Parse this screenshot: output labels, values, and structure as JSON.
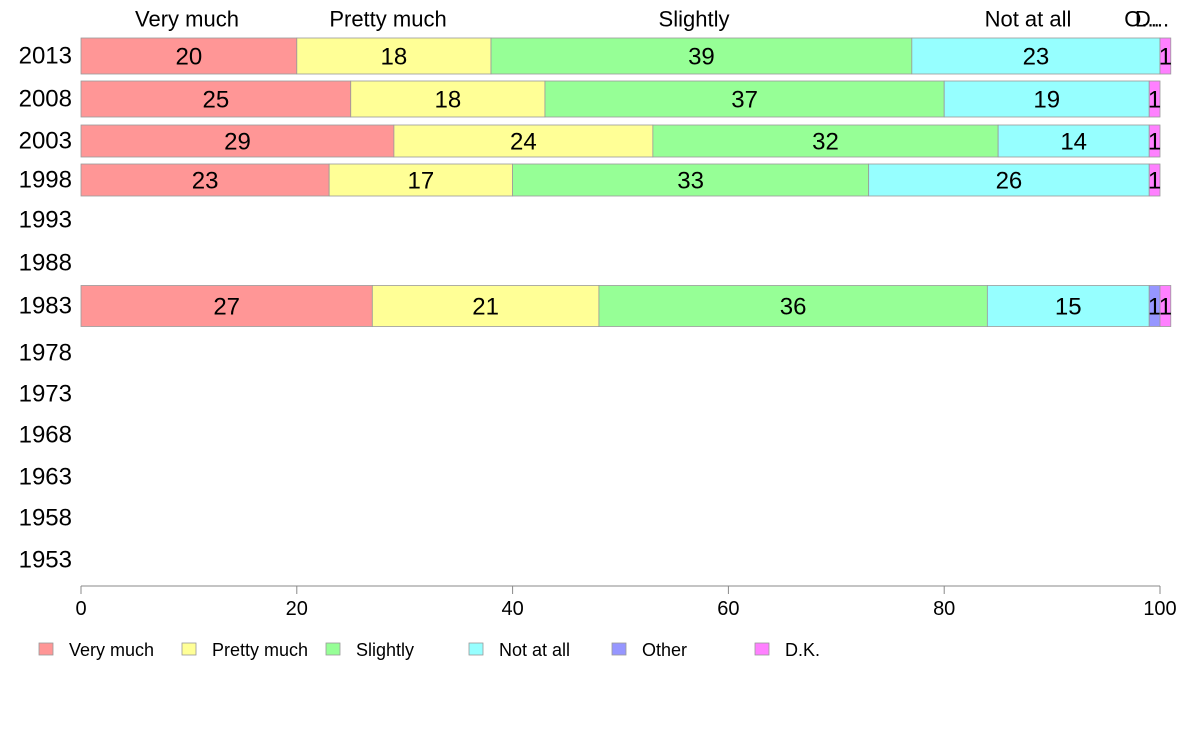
{
  "chart_data": {
    "type": "bar",
    "orientation": "horizontal",
    "stacked": true,
    "categories": [
      "2013",
      "2008",
      "2003",
      "1998",
      "1993",
      "1988",
      "1983",
      "1978",
      "1973",
      "1968",
      "1963",
      "1958",
      "1953"
    ],
    "series": [
      {
        "name": "Very much",
        "color": "#ff9696",
        "values": [
          20,
          25,
          29,
          23,
          null,
          null,
          27,
          null,
          null,
          null,
          null,
          null,
          null
        ]
      },
      {
        "name": "Pretty much",
        "color": "#ffff96",
        "values": [
          18,
          18,
          24,
          17,
          null,
          null,
          21,
          null,
          null,
          null,
          null,
          null,
          null
        ]
      },
      {
        "name": "Slightly",
        "color": "#96ff96",
        "values": [
          39,
          37,
          32,
          33,
          null,
          null,
          36,
          null,
          null,
          null,
          null,
          null,
          null
        ]
      },
      {
        "name": "Not at all",
        "color": "#96ffff",
        "values": [
          23,
          19,
          14,
          26,
          null,
          null,
          15,
          null,
          null,
          null,
          null,
          null,
          null
        ]
      },
      {
        "name": "Other",
        "color": "#9696ff",
        "values": [
          0,
          0,
          0,
          0,
          null,
          null,
          1,
          null,
          null,
          null,
          null,
          null,
          null
        ]
      },
      {
        "name": "D.K.",
        "color": "#ff80ff",
        "values": [
          1,
          1,
          1,
          1,
          null,
          null,
          1,
          null,
          null,
          null,
          null,
          null,
          null
        ]
      }
    ],
    "top_labels": [
      "Very much",
      "Pretty much",
      "Slightly",
      "Not at all",
      "O...",
      "D..."
    ],
    "xlim": [
      0,
      100
    ],
    "xticks": [
      "0",
      "20",
      "40",
      "60",
      "80",
      "100"
    ],
    "title": "",
    "xlabel": "",
    "ylabel": "",
    "grid": false,
    "legend_position": "bottom-left"
  }
}
